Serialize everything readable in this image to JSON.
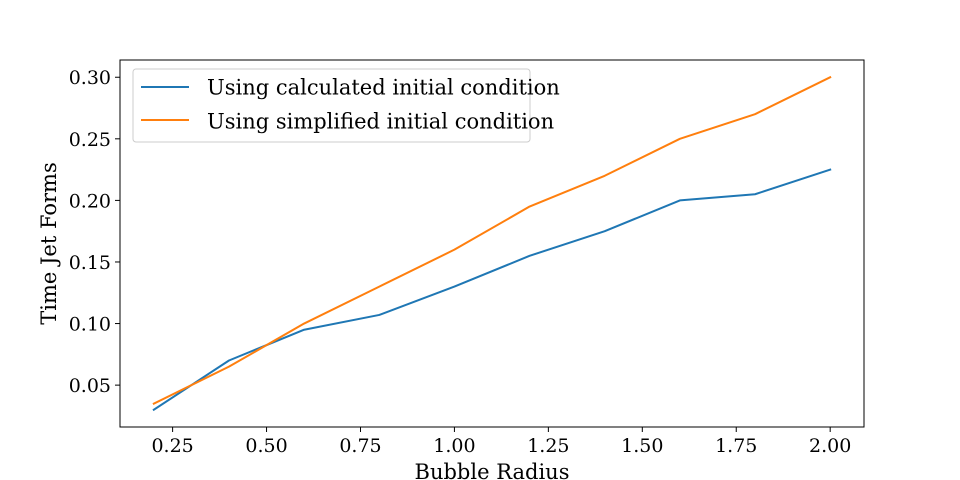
{
  "chart_data": {
    "type": "line",
    "xlabel": "Bubble Radius",
    "ylabel": "Time Jet Forms",
    "xlim": [
      0.11,
      2.09
    ],
    "ylim": [
      0.016,
      0.314
    ],
    "xticks": [
      0.25,
      0.5,
      0.75,
      1.0,
      1.25,
      1.5,
      1.75,
      2.0
    ],
    "xtick_labels": [
      "0.25",
      "0.50",
      "0.75",
      "1.00",
      "1.25",
      "1.50",
      "1.75",
      "2.00"
    ],
    "yticks": [
      0.05,
      0.1,
      0.15,
      0.2,
      0.25,
      0.3
    ],
    "ytick_labels": [
      "0.05",
      "0.10",
      "0.15",
      "0.20",
      "0.25",
      "0.30"
    ],
    "grid": false,
    "legend_position": "top-left",
    "x": [
      0.2,
      0.4,
      0.6,
      0.8,
      1.0,
      1.2,
      1.4,
      1.6,
      1.8,
      2.0
    ],
    "series": [
      {
        "name": "Using calculated initial condition",
        "color": "#1f77b4",
        "values": [
          0.03,
          0.07,
          0.095,
          0.107,
          0.13,
          0.155,
          0.175,
          0.2,
          0.205,
          0.225
        ]
      },
      {
        "name": "Using simplified initial condition",
        "color": "#ff7f0e",
        "values": [
          0.035,
          0.065,
          0.1,
          0.13,
          0.16,
          0.195,
          0.22,
          0.25,
          0.27,
          0.3
        ]
      }
    ]
  }
}
